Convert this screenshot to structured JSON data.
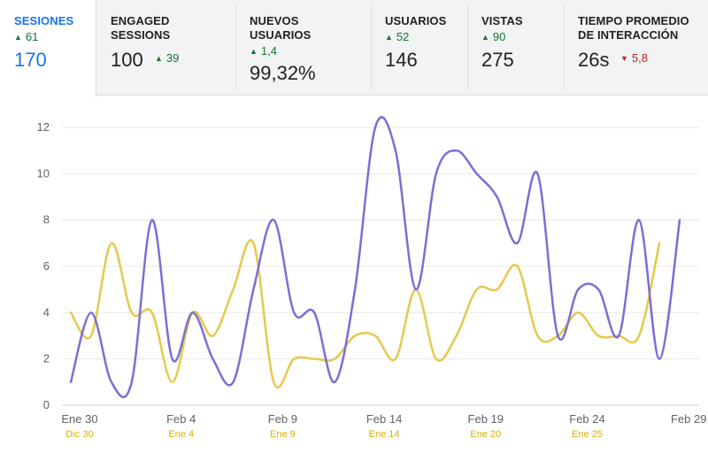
{
  "tabs": [
    {
      "label": "SESIONES",
      "delta": "61",
      "delta_dir": "up",
      "value": "170",
      "active": true
    },
    {
      "label": "ENGAGED SESSIONS",
      "value": "100",
      "delta": "39",
      "delta_dir": "up"
    },
    {
      "label": "NUEVOS USUARIOS",
      "delta": "1,4",
      "delta_dir": "up",
      "value": "99,32%"
    },
    {
      "label": "USUARIOS",
      "delta": "52",
      "delta_dir": "up",
      "value": "146"
    },
    {
      "label": "VISTAS",
      "delta": "90",
      "delta_dir": "up",
      "value": "275"
    },
    {
      "label": "TIEMPO PROMEDIO DE INTERACCIÓN",
      "value": "26s",
      "delta": "5,8",
      "delta_dir": "down"
    }
  ],
  "colors": {
    "primary_series": "#7b6fd4",
    "comparison_series": "#e6c94a",
    "up": "#137333",
    "down": "#c5221f",
    "active_tab": "#1a73e8"
  },
  "chart_data": {
    "type": "line",
    "ylim": [
      0,
      12
    ],
    "yticks": [
      0,
      2,
      4,
      6,
      8,
      10,
      12
    ],
    "grid": true,
    "x_tick_labels": [
      "Ene 30",
      "Feb 4",
      "Feb 9",
      "Feb 14",
      "Feb 19",
      "Feb 24",
      "Feb 29"
    ],
    "x2_tick_labels": [
      "Dic 30",
      "Ene 4",
      "Ene 9",
      "Ene 14",
      "Ene 20",
      "Ene 25"
    ],
    "series": [
      {
        "values": [
          1,
          4,
          1,
          1,
          8,
          2,
          4,
          2,
          1,
          5,
          8,
          4,
          4,
          1,
          5,
          12,
          11,
          5,
          10,
          11,
          10,
          9,
          7,
          10,
          3,
          5,
          5,
          3,
          8,
          2,
          8
        ]
      },
      {
        "values": [
          4,
          3,
          7,
          4,
          4,
          1,
          4,
          3,
          5,
          7,
          1,
          2,
          2,
          2,
          3,
          3,
          2,
          5,
          2,
          3,
          5,
          5,
          6,
          3,
          3,
          4,
          3,
          3,
          3,
          7
        ]
      }
    ]
  }
}
